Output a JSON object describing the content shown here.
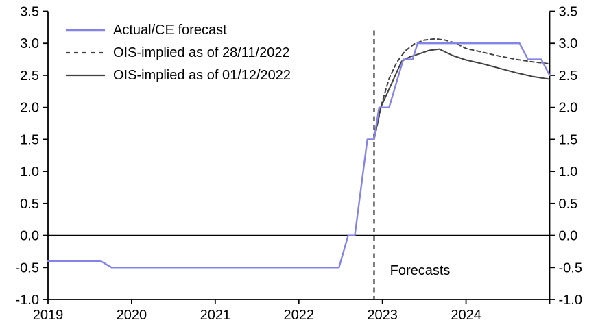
{
  "chart_data": {
    "type": "line",
    "title": "",
    "grid": false,
    "legend_position": "top-left",
    "x_axis": {
      "min": 2019,
      "max": 2025,
      "ticks": [
        2019,
        2020,
        2021,
        2022,
        2023,
        2024
      ]
    },
    "y_axis": {
      "min": -1.0,
      "max": 3.5,
      "ticks": [
        -1.0,
        -0.5,
        0.0,
        0.5,
        1.0,
        1.5,
        2.0,
        2.5,
        3.0,
        3.5
      ],
      "sides": "both"
    },
    "zero_line": true,
    "forecast_line": {
      "x": 2022.9,
      "y_from": -1.0,
      "y_to": 3.2,
      "style": "dashed",
      "color": "#000000"
    },
    "annotation": {
      "text": "Forecasts",
      "x": 2023.09,
      "y": -0.57
    },
    "series": [
      {
        "id": "actual-ce-forecast",
        "name": "Actual/CE forecast",
        "color": "#8484e8",
        "style": "solid",
        "width": 2.4,
        "points": [
          [
            2019.0,
            -0.4
          ],
          [
            2019.63,
            -0.4
          ],
          [
            2019.76,
            -0.5
          ],
          [
            2022.48,
            -0.5
          ],
          [
            2022.59,
            0.0
          ],
          [
            2022.67,
            0.0
          ],
          [
            2022.82,
            1.5
          ],
          [
            2022.9,
            1.5
          ],
          [
            2022.96,
            2.0
          ],
          [
            2023.08,
            2.0
          ],
          [
            2023.25,
            2.75
          ],
          [
            2023.36,
            2.75
          ],
          [
            2023.42,
            3.0
          ],
          [
            2024.64,
            3.0
          ],
          [
            2024.74,
            2.75
          ],
          [
            2024.9,
            2.75
          ],
          [
            2025.0,
            2.5
          ]
        ]
      },
      {
        "id": "ois-implied-28-11-2022",
        "name": "OIS-implied as of 28/11/2022",
        "color": "#414141",
        "style": "dashed",
        "width": 2,
        "points": [
          [
            2022.9,
            1.5
          ],
          [
            2023.0,
            2.1
          ],
          [
            2023.08,
            2.45
          ],
          [
            2023.17,
            2.7
          ],
          [
            2023.27,
            2.88
          ],
          [
            2023.38,
            2.99
          ],
          [
            2023.5,
            3.05
          ],
          [
            2023.63,
            3.07
          ],
          [
            2023.75,
            3.05
          ],
          [
            2023.88,
            3.0
          ],
          [
            2024.0,
            2.92
          ],
          [
            2024.2,
            2.86
          ],
          [
            2024.4,
            2.8
          ],
          [
            2024.6,
            2.75
          ],
          [
            2024.8,
            2.71
          ],
          [
            2025.0,
            2.68
          ]
        ]
      },
      {
        "id": "ois-implied-01-12-2022",
        "name": "OIS-implied as of 01/12/2022",
        "color": "#414141",
        "style": "solid",
        "width": 2,
        "points": [
          [
            2022.9,
            1.5
          ],
          [
            2022.98,
            2.0
          ],
          [
            2023.13,
            2.43
          ],
          [
            2023.23,
            2.72
          ],
          [
            2023.33,
            2.79
          ],
          [
            2023.45,
            2.84
          ],
          [
            2023.56,
            2.89
          ],
          [
            2023.68,
            2.91
          ],
          [
            2023.84,
            2.81
          ],
          [
            2024.0,
            2.74
          ],
          [
            2024.2,
            2.68
          ],
          [
            2024.4,
            2.61
          ],
          [
            2024.6,
            2.54
          ],
          [
            2024.8,
            2.48
          ],
          [
            2025.0,
            2.44
          ]
        ]
      }
    ]
  }
}
